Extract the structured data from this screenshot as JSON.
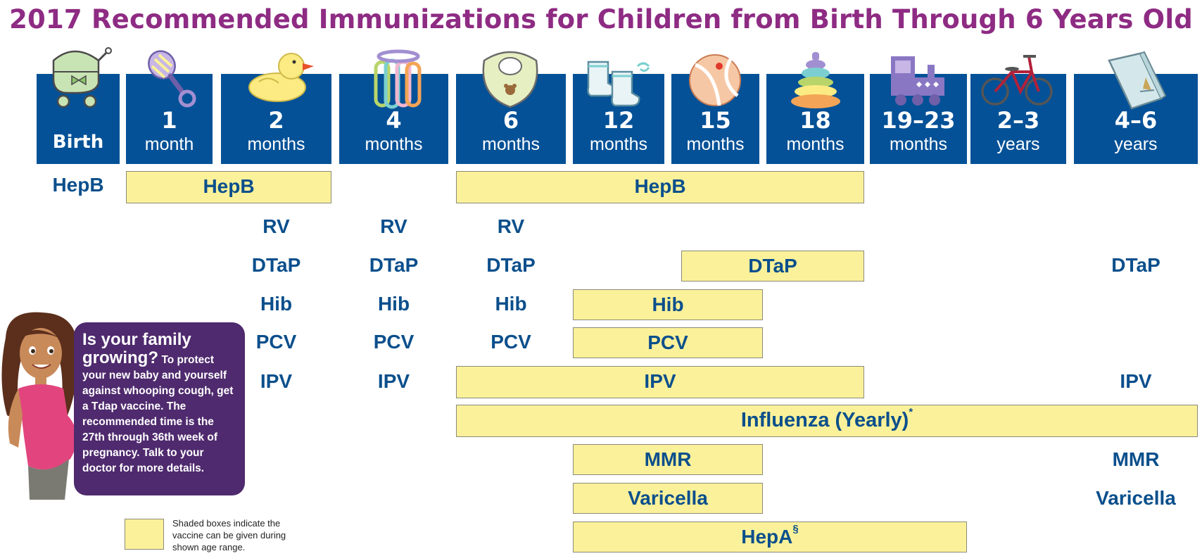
{
  "title": "2017 Recommended Immunizations for Children from Birth Through 6 Years Old",
  "colors": {
    "header_bg": "#045197",
    "title": "#8e2b83",
    "vaccine_text": "#0b4f8c",
    "shaded_box": "#fbf19a",
    "callout_bg": "#4f2a6e"
  },
  "ages": [
    {
      "num": "",
      "unit": "Birth",
      "icon": "baby-carriage-icon"
    },
    {
      "num": "1",
      "unit": "month",
      "icon": "rattle-icon"
    },
    {
      "num": "2",
      "unit": "months",
      "icon": "rubber-duck-icon"
    },
    {
      "num": "4",
      "unit": "months",
      "icon": "teething-rings-icon"
    },
    {
      "num": "6",
      "unit": "months",
      "icon": "bib-icon"
    },
    {
      "num": "12",
      "unit": "months",
      "icon": "baby-booties-icon"
    },
    {
      "num": "15",
      "unit": "months",
      "icon": "beach-ball-icon"
    },
    {
      "num": "18",
      "unit": "months",
      "icon": "stacking-rings-icon"
    },
    {
      "num": "19–23",
      "unit": "months",
      "icon": "toy-train-icon"
    },
    {
      "num": "2–3",
      "unit": "years",
      "icon": "tricycle-icon"
    },
    {
      "num": "4–6",
      "unit": "years",
      "icon": "book-icon"
    }
  ],
  "vaccines": {
    "hepb": "HepB",
    "rv": "RV",
    "dtap": "DTaP",
    "hib": "Hib",
    "pcv": "PCV",
    "ipv": "IPV",
    "influenza": "Influenza (Yearly)",
    "influenza_mark": "*",
    "mmr": "MMR",
    "varicella": "Varicella",
    "hepa": "HepA",
    "hepa_mark": "§"
  },
  "callout": {
    "heading": "Is your family growing?",
    "body": "To protect your new baby and yourself against whooping cough, get a Tdap vaccine. The recommended time is the 27th through 36th week of pregnancy. Talk to your doctor for more details."
  },
  "legend": {
    "text": "Shaded boxes indicate the vaccine can be given during shown age range."
  }
}
